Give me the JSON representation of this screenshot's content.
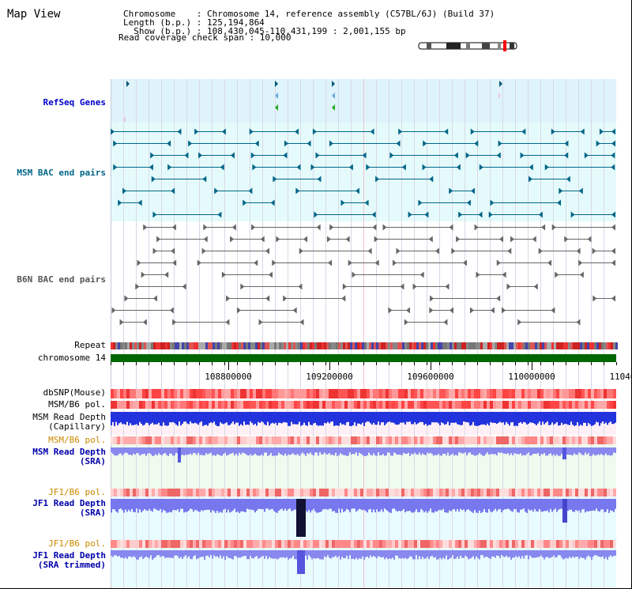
{
  "title": "Map View",
  "header": {
    "chromosome_line": "Chromosome    : Chromosome 14, reference assembly (C57BL/6J) (Build 37)",
    "length_line": "Length (b.p.) : 125,194,864",
    "show_line": "  Show (b.p.) : 108,430,045-110,431,199 : 2,001,155 bp",
    "coverage_line": "Read coverage check span : 10,000"
  },
  "tracks": {
    "refseq": "RefSeq Genes",
    "msm_bac": "MSM BAC end pairs",
    "b6n_bac": "B6N BAC end pairs",
    "repeat": "Repeat",
    "chromosome": "chromosome 14",
    "dbsnp": "dbSNP(Mouse)",
    "msm_b6_pol_1": "MSM/B6 pol.",
    "msm_read_cap_1": "MSM Read Depth",
    "msm_read_cap_2": "(Capillary)",
    "msm_b6_pol_2": "MSM/B6 pol.",
    "msm_read_sra_1": "MSM Read Depth",
    "msm_read_sra_2": "(SRA)",
    "jf1_b6_pol_1": "JF1/B6 pol.",
    "jf1_read_sra_1": "JF1 Read Depth",
    "jf1_read_sra_2": "(SRA)",
    "jf1_b6_pol_2": "JF1/B6 pol.",
    "jf1_read_trim_1": "JF1 Read Depth",
    "jf1_read_trim_2": "(SRA trimmed)"
  },
  "axis": {
    "ticks": [
      "108800000",
      "109200000",
      "109600000",
      "110000000",
      "11040"
    ]
  },
  "colors": {
    "refseq_label": "#0000cc",
    "msm_bac_label": "#006688",
    "b6n_bac_label": "#555555",
    "pol_orange": "#cc8800",
    "depth_blue": "#0000aa",
    "chromosome_green": "#006600"
  }
}
